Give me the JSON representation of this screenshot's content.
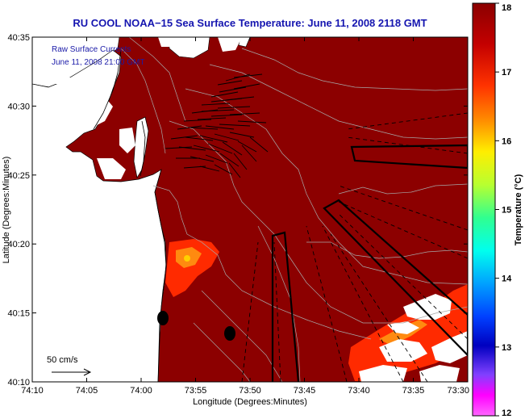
{
  "title": "RU COOL  NOAA−15  Sea Surface Temperature:  June 11, 2008 2118 GMT",
  "overlay": {
    "line1": "Raw Surface Currents",
    "line2": "June 11, 2008 21:00 GMT"
  },
  "x_axis": {
    "label": "Longitude (Degrees:Minutes)",
    "ticks": [
      "74:10",
      "74:05",
      "74:00",
      "73:55",
      "73:50",
      "73:45",
      "73:40",
      "73:35",
      "73:30"
    ]
  },
  "y_axis": {
    "label": "Latitude (Degrees:Minutes)",
    "ticks": [
      "40:35",
      "40:30",
      "40:25",
      "40:20",
      "40:15",
      "40:10"
    ]
  },
  "scale_vector": {
    "label": "50 cm/s"
  },
  "colorbar": {
    "label": "Temperature (°C)",
    "ticks": [
      "18",
      "17",
      "16",
      "15",
      "14",
      "13",
      "12"
    ],
    "min": 12,
    "max": 18
  },
  "colors": {
    "sea": "#8c0000",
    "land": "#ffffff",
    "warm_patch": "#ff2a00",
    "title": "#1515b0"
  }
}
